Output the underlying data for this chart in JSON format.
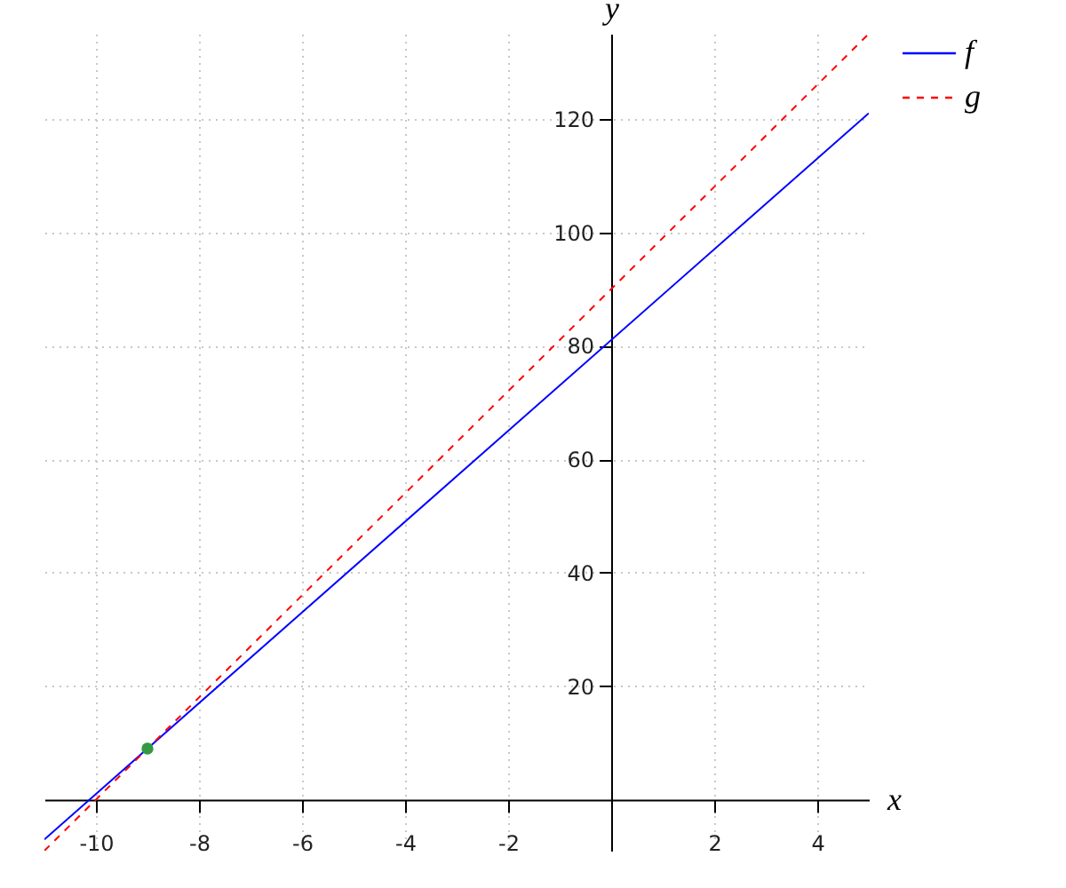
{
  "chart_data": {
    "type": "line",
    "xlabel": "x",
    "ylabel": "y",
    "xlim": [
      -11,
      5
    ],
    "ylim": [
      -9,
      135
    ],
    "xticks": [
      -10,
      -8,
      -6,
      -4,
      -2,
      2,
      4
    ],
    "yticks": [
      20,
      40,
      60,
      80,
      100,
      120
    ],
    "grid": true,
    "legend": "top right",
    "series": [
      {
        "name": "f",
        "color": "#0000ff",
        "line_style": "solid",
        "x": [
          -11,
          5
        ],
        "values": [
          -7,
          121
        ]
      },
      {
        "name": "g",
        "color": "#ff0000",
        "line_style": "dashed",
        "x": [
          -11,
          5
        ],
        "values": [
          -9,
          135
        ]
      },
      {
        "type": "scatter",
        "color": "#339944",
        "marker": "circle",
        "x": [
          -9
        ],
        "values": [
          9
        ]
      }
    ]
  }
}
